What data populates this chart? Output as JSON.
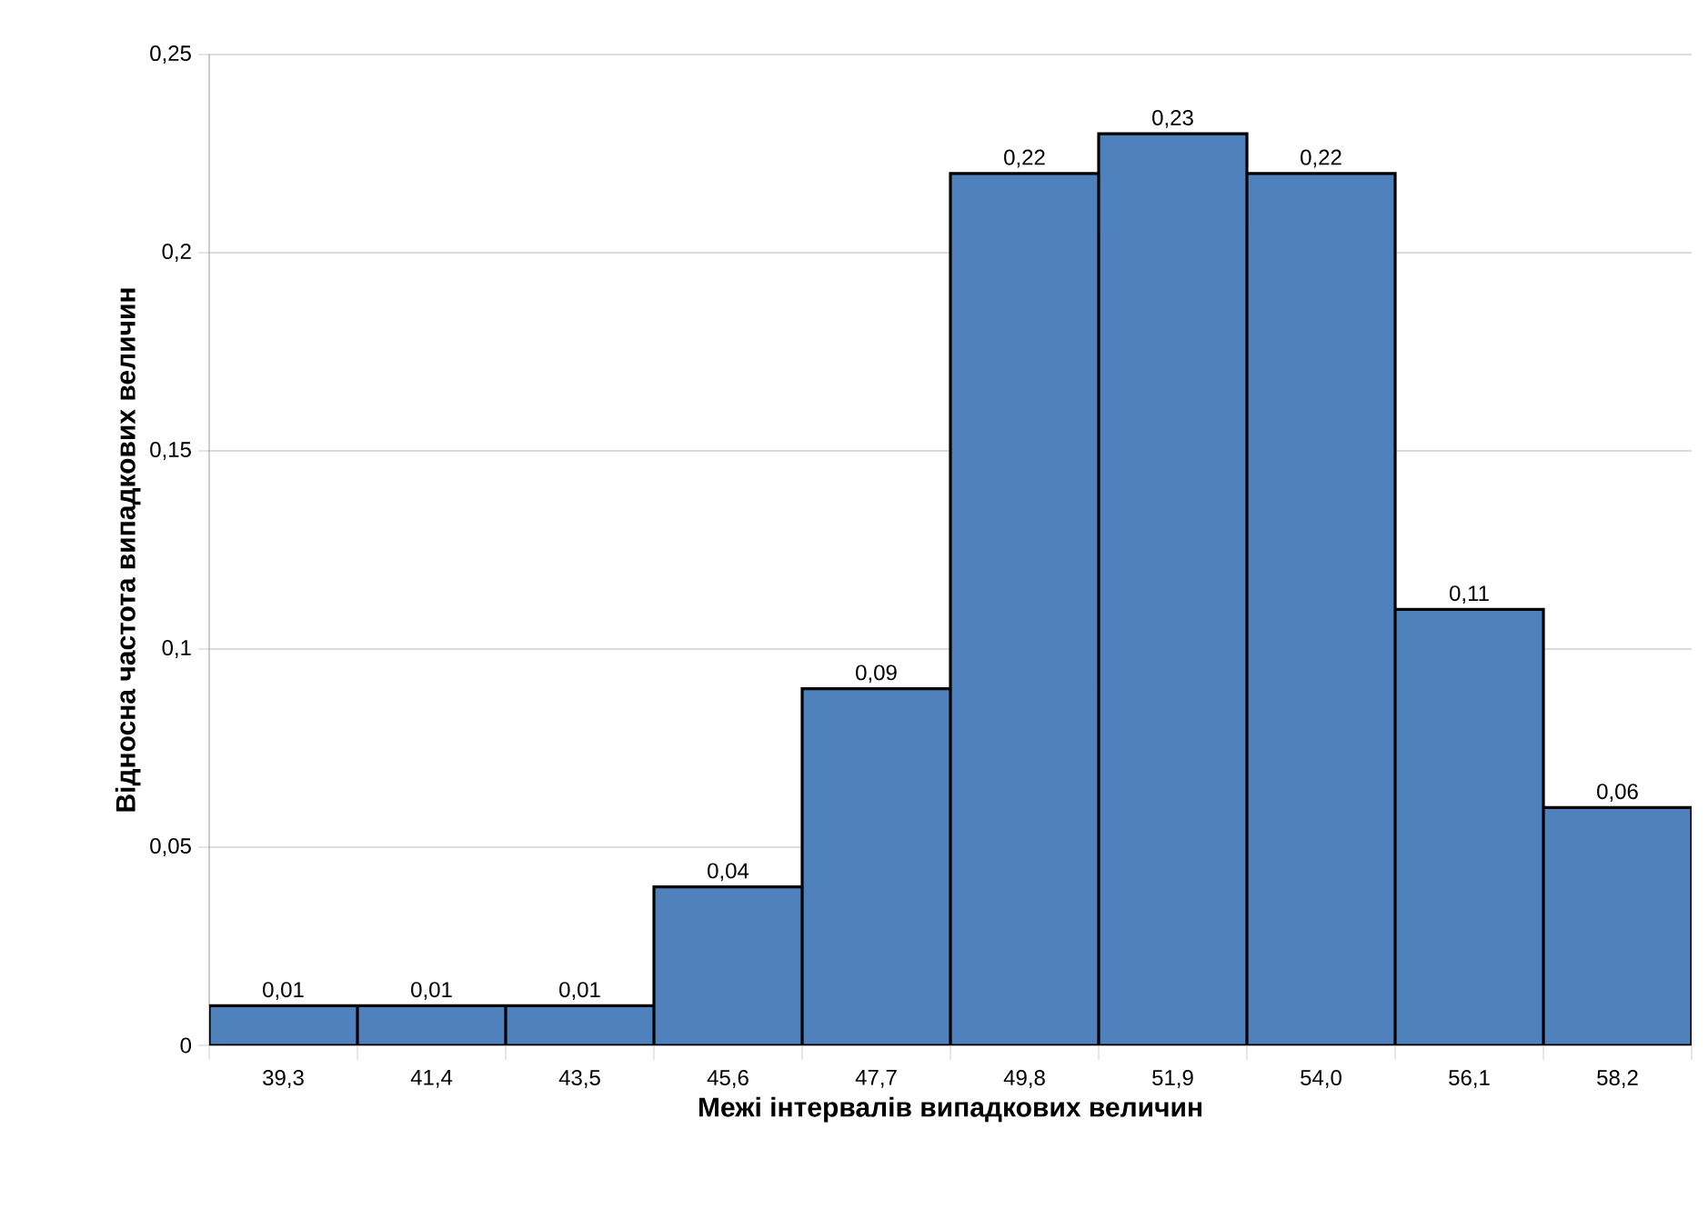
{
  "chart_data": {
    "type": "bar",
    "xlabel": "Межі інтервалів випадкових величин",
    "ylabel": "Відносна частота випадкових  величин",
    "categories": [
      "39,3",
      "41,4",
      "43,5",
      "45,6",
      "47,7",
      "49,8",
      "51,9",
      "54,0",
      "56,1",
      "58,2"
    ],
    "values": [
      0.01,
      0.01,
      0.01,
      0.04,
      0.09,
      0.22,
      0.23,
      0.22,
      0.11,
      0.06
    ],
    "value_labels": [
      "0,01",
      "0,01",
      "0,01",
      "0,04",
      "0,09",
      "0,22",
      "0,23",
      "0,22",
      "0,11",
      "0,06"
    ],
    "color": "#4f81bd",
    "ylim": [
      0,
      0.25
    ],
    "yticks": [
      0,
      {
        "value": 0.05,
        "label": "0,05"
      },
      {
        "value": 0.1,
        "label": "0,1"
      },
      {
        "value": 0.15,
        "label": "0,15"
      },
      {
        "value": 0.2,
        "label": "0,2"
      },
      {
        "value": 0.25,
        "label": "0,25"
      }
    ],
    "grid": "y"
  }
}
